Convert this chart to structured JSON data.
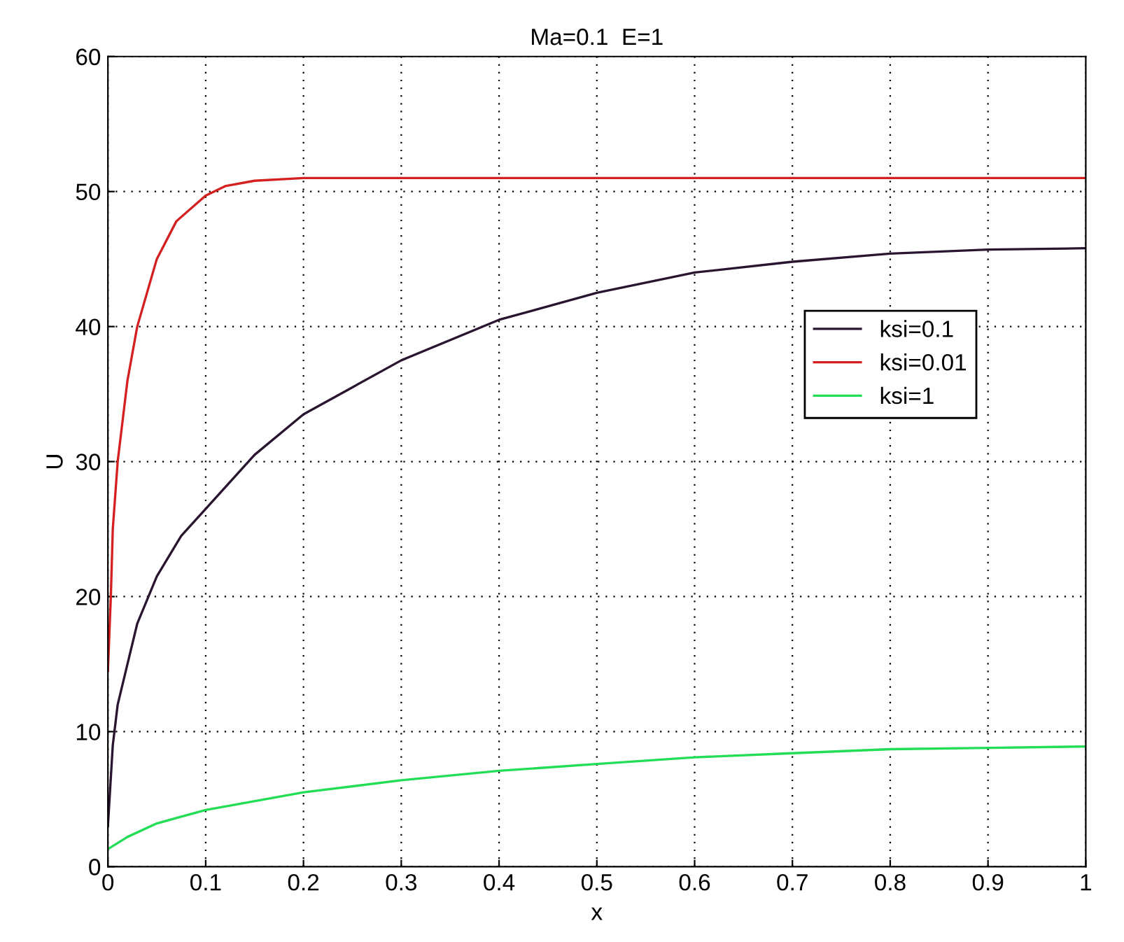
{
  "chart_data": {
    "type": "line",
    "title": "Ma=0.1  E=1",
    "xlabel": "x",
    "ylabel": "U",
    "xlim": [
      0,
      1
    ],
    "ylim": [
      0,
      60
    ],
    "xticks": [
      0,
      0.1,
      0.2,
      0.3,
      0.4,
      0.5,
      0.6,
      0.7,
      0.8,
      0.9,
      1
    ],
    "yticks": [
      0,
      10,
      20,
      30,
      40,
      50,
      60
    ],
    "grid": true,
    "legend": "right",
    "line_style": "solid",
    "series": [
      {
        "name": "ksi=0.1",
        "color": "#2a1530",
        "x": [
          0,
          0.005,
          0.01,
          0.02,
          0.03,
          0.05,
          0.075,
          0.1,
          0.15,
          0.2,
          0.25,
          0.3,
          0.4,
          0.5,
          0.6,
          0.7,
          0.8,
          0.9,
          1.0
        ],
        "values": [
          3,
          9,
          12,
          15,
          18,
          21.5,
          24.5,
          26.5,
          30.5,
          33.5,
          35.5,
          37.5,
          40.5,
          42.5,
          44,
          44.8,
          45.4,
          45.7,
          45.8
        ]
      },
      {
        "name": "ksi=0.01",
        "color": "#d42020",
        "x": [
          0,
          0.003,
          0.005,
          0.01,
          0.02,
          0.03,
          0.05,
          0.07,
          0.1,
          0.12,
          0.15,
          0.2,
          0.3,
          1.0
        ],
        "values": [
          14.5,
          20,
          25,
          30,
          36,
          40,
          45,
          47.8,
          49.7,
          50.4,
          50.8,
          51,
          51,
          51
        ]
      },
      {
        "name": "ksi=1",
        "color": "#22dd55",
        "x": [
          0,
          0.02,
          0.05,
          0.1,
          0.2,
          0.3,
          0.4,
          0.5,
          0.6,
          0.7,
          0.8,
          0.9,
          1.0
        ],
        "values": [
          1.3,
          2.2,
          3.2,
          4.2,
          5.5,
          6.4,
          7.1,
          7.6,
          8.1,
          8.4,
          8.7,
          8.8,
          8.9
        ]
      }
    ]
  }
}
